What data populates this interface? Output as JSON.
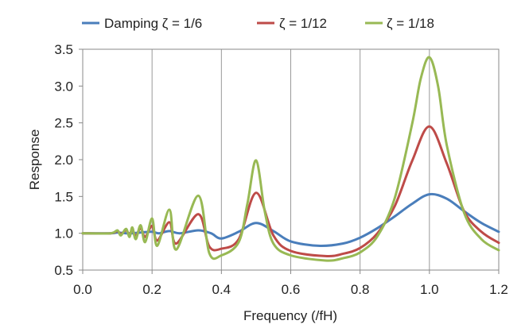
{
  "chart_data": {
    "type": "line",
    "title": "",
    "xlabel": "Frequency (/fH)",
    "ylabel": "Response",
    "xlim": [
      0.0,
      1.2
    ],
    "ylim": [
      0.5,
      3.5
    ],
    "x_ticks": [
      "0.0",
      "0.2",
      "0.4",
      "0.6",
      "0.8",
      "1.0",
      "1.2"
    ],
    "y_ticks": [
      "0.5",
      "1.0",
      "1.5",
      "2.0",
      "2.5",
      "3.0",
      "3.5"
    ],
    "grid": "vertical",
    "legend_position": "top",
    "series": [
      {
        "name": "Damping  ζ = 1/6",
        "color": "#4a7ebb",
        "x": [
          0.0,
          0.08,
          0.1,
          0.125,
          0.143,
          0.167,
          0.2,
          0.22,
          0.25,
          0.28,
          0.3333,
          0.37,
          0.4,
          0.45,
          0.5,
          0.55,
          0.6,
          0.68,
          0.75,
          0.8,
          0.85,
          0.9,
          0.95,
          1.0,
          1.05,
          1.1,
          1.15,
          1.2
        ],
        "y": [
          1.0,
          1.0,
          1.01,
          1.0,
          1.0,
          1.01,
          1.02,
          1.0,
          1.03,
          1.0,
          1.04,
          1.0,
          0.93,
          1.02,
          1.14,
          1.03,
          0.89,
          0.83,
          0.86,
          0.94,
          1.07,
          1.23,
          1.4,
          1.53,
          1.47,
          1.3,
          1.14,
          1.02
        ]
      },
      {
        "name": "ζ = 1/12",
        "color": "#be4b48",
        "x": [
          0.0,
          0.08,
          0.1,
          0.11,
          0.125,
          0.135,
          0.143,
          0.153,
          0.167,
          0.18,
          0.2,
          0.215,
          0.25,
          0.27,
          0.3333,
          0.365,
          0.4,
          0.45,
          0.5,
          0.55,
          0.6,
          0.7,
          0.75,
          0.8,
          0.85,
          0.9,
          0.95,
          1.0,
          1.05,
          1.1,
          1.15,
          1.2
        ],
        "y": [
          1.0,
          1.0,
          1.03,
          0.99,
          1.04,
          0.98,
          1.05,
          0.96,
          1.07,
          0.95,
          1.1,
          0.9,
          1.15,
          0.86,
          1.26,
          0.82,
          0.79,
          0.92,
          1.55,
          0.97,
          0.76,
          0.69,
          0.72,
          0.8,
          1.0,
          1.37,
          1.98,
          2.45,
          1.95,
          1.3,
          1.02,
          0.87
        ]
      },
      {
        "name": "ζ = 1/18",
        "color": "#98b954",
        "x": [
          0.0,
          0.08,
          0.1,
          0.11,
          0.125,
          0.135,
          0.143,
          0.153,
          0.167,
          0.18,
          0.2,
          0.215,
          0.25,
          0.27,
          0.3333,
          0.365,
          0.4,
          0.45,
          0.475,
          0.5,
          0.525,
          0.55,
          0.6,
          0.7,
          0.75,
          0.8,
          0.85,
          0.9,
          0.95,
          0.975,
          1.0,
          1.025,
          1.05,
          1.1,
          1.15,
          1.2
        ],
        "y": [
          1.0,
          1.0,
          1.04,
          0.97,
          1.06,
          0.95,
          1.08,
          0.92,
          1.11,
          0.88,
          1.2,
          0.83,
          1.32,
          0.78,
          1.51,
          0.73,
          0.7,
          0.88,
          1.4,
          1.99,
          1.3,
          0.86,
          0.7,
          0.63,
          0.66,
          0.74,
          0.96,
          1.48,
          2.48,
          3.1,
          3.39,
          3.0,
          2.2,
          1.28,
          0.92,
          0.77
        ]
      }
    ]
  }
}
